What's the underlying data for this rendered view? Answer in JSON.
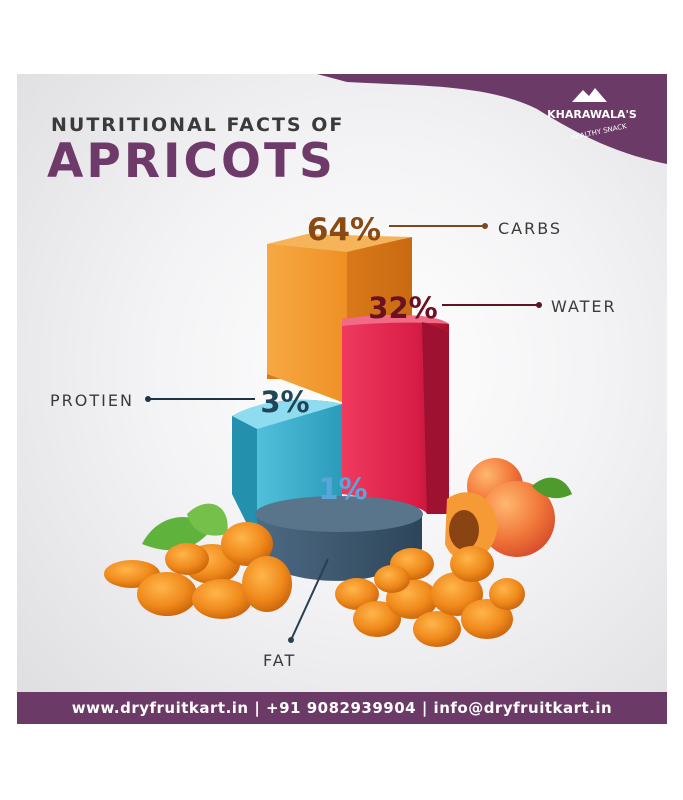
{
  "title": {
    "line1": "NUTRITIONAL FACTS OF",
    "line2": "APRICOTS"
  },
  "brand": {
    "name": "KHARAWALA'S",
    "tagline": "HEALTHY SNACK"
  },
  "footer": {
    "website": "www.dryfruitkart.in",
    "separator1": "|",
    "phone": "+91 9082939904",
    "separator2": "|",
    "email": "info@dryfruitkart.in"
  },
  "colors": {
    "carbs": "#f0962a",
    "water": "#e4294f",
    "protein": "#3cb3cf",
    "fat": "#3d5870",
    "brand": "#6b3a66"
  },
  "chart_data": {
    "type": "bar",
    "categories": [
      "CARBS",
      "WATER",
      "PROTIEN",
      "FAT"
    ],
    "values": [
      64,
      32,
      3,
      1
    ],
    "value_labels": [
      "64%",
      "32%",
      "3%",
      "1%"
    ],
    "unit": "%"
  }
}
